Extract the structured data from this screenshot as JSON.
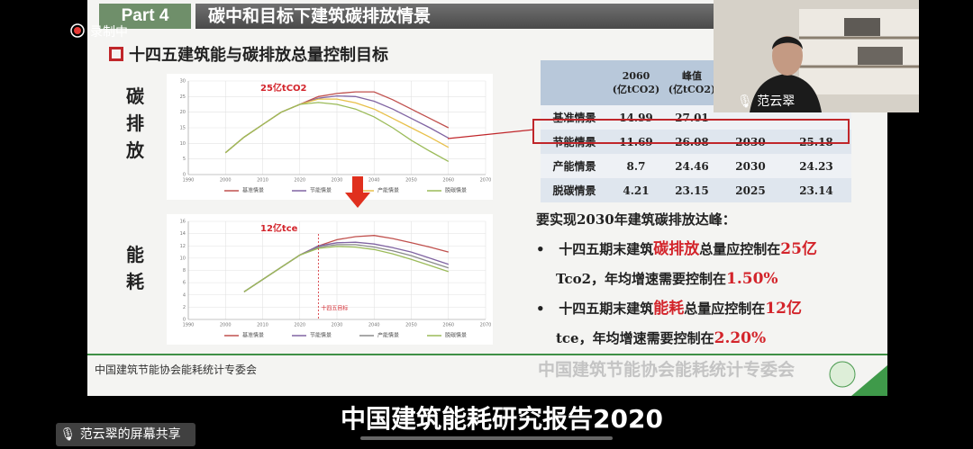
{
  "meeting": {
    "recording": "录制中",
    "participant": "范云翠",
    "share_label": "范云翠的屏幕共享",
    "caption": "中国建筑能耗研究报告2020"
  },
  "slide": {
    "part": "Part 4",
    "title": "碳中和目标下建筑碳排放情景",
    "subtitle": "十四五建筑能与碳排放总量控制目标",
    "charts": [
      {
        "type": "line",
        "row_label": "碳排放",
        "annotation": "25亿tCO2",
        "x": [
          2000,
          2005,
          2010,
          2015,
          2020,
          2025,
          2030,
          2035,
          2040,
          2045,
          2050,
          2055,
          2060
        ],
        "xlim": [
          1990,
          2070
        ],
        "xticks": [
          1990,
          2000,
          2010,
          2020,
          2030,
          2040,
          2050,
          2060,
          2070
        ],
        "ylim": [
          0,
          30
        ],
        "yticks": [
          0,
          5,
          10,
          15,
          20,
          25,
          30
        ],
        "grid": true,
        "series": [
          {
            "name": "基准情景",
            "color": "#c0504d",
            "values": [
              7,
              12,
              16,
              20,
              22.5,
              25,
              26,
              26.5,
              26.5,
              24,
              21,
              18,
              15
            ]
          },
          {
            "name": "节能情景",
            "color": "#8064a2",
            "values": [
              7,
              12,
              16,
              20,
              22.5,
              24.5,
              25.2,
              25,
              23.5,
              21,
              18,
              15,
              11.7
            ]
          },
          {
            "name": "产能情景",
            "color": "#e8c04a",
            "values": [
              7,
              12,
              16,
              20,
              22.5,
              24.2,
              24.2,
              23,
              21,
              18,
              15,
              12,
              8.7
            ]
          },
          {
            "name": "脱碳情景",
            "color": "#9bbb59",
            "values": [
              7,
              12,
              16,
              20,
              22.5,
              23.1,
              22.5,
              21,
              18.5,
              15,
              11,
              7.5,
              4.2
            ]
          }
        ]
      },
      {
        "type": "line",
        "row_label": "能耗",
        "annotation": "12亿tce",
        "marker_label": "十四五目标",
        "x": [
          2000,
          2005,
          2010,
          2015,
          2020,
          2025,
          2030,
          2035,
          2040,
          2045,
          2050,
          2055,
          2060
        ],
        "xlim": [
          1990,
          2070
        ],
        "xticks": [
          1990,
          2000,
          2010,
          2020,
          2030,
          2040,
          2050,
          2060,
          2070
        ],
        "ylim": [
          0,
          16
        ],
        "yticks": [
          0,
          2,
          4,
          6,
          8,
          10,
          12,
          14,
          16
        ],
        "grid": true,
        "series": [
          {
            "name": "基准情景",
            "color": "#c0504d",
            "values": [
              null,
              4.5,
              6.5,
              8.5,
              10.5,
              12,
              13,
              13.5,
              13.7,
              13.2,
              12.5,
              11.8,
              11
            ]
          },
          {
            "name": "节能情景",
            "color": "#8064a2",
            "values": [
              null,
              4.5,
              6.5,
              8.5,
              10.5,
              12,
              12.5,
              12.6,
              12.3,
              11.7,
              11,
              10,
              9
            ]
          },
          {
            "name": "产能情景",
            "color": "#8a8a8a",
            "values": [
              null,
              4.5,
              6.5,
              8.5,
              10.5,
              11.8,
              12.2,
              12.2,
              11.8,
              11.2,
              10.4,
              9.4,
              8.4
            ]
          },
          {
            "name": "脱碳情景",
            "color": "#9bbb59",
            "values": [
              null,
              4.5,
              6.5,
              8.5,
              10.5,
              11.6,
              11.9,
              11.8,
              11.4,
              10.7,
              9.8,
              8.8,
              7.8
            ]
          }
        ]
      }
    ],
    "table": {
      "header": [
        [
          "2060",
          "(亿tCO2)"
        ],
        [
          "峰值",
          "(亿tCO2)"
        ]
      ],
      "rows": [
        [
          "基准情景",
          14.99,
          27.01
        ],
        [
          "节能情景",
          11.69,
          26.08,
          2030,
          25.18
        ],
        [
          "产能情景",
          8.7,
          24.46,
          2030,
          24.23
        ],
        [
          "脱碳情景",
          4.21,
          23.15,
          2025,
          23.14
        ]
      ]
    },
    "bullets_title": "要实现2030年建筑碳排放达峰：",
    "bullets": [
      {
        "lead": "十四五期末建筑",
        "key": "碳排放",
        "mid": "总量应控制在",
        "target": "25亿",
        "unit": "Tco2，年均增速需要控制在",
        "rate": "1.50%"
      },
      {
        "lead": "十四五期末建筑",
        "key": "能耗",
        "mid": "总量应控制在",
        "target": "12亿",
        "unit": "tce，年均增速需要控制在",
        "rate": "2.20%"
      }
    ],
    "footer": "中国建筑节能协会能耗统计专委会",
    "watermark": "中国建筑节能协会能耗统计专委会"
  }
}
